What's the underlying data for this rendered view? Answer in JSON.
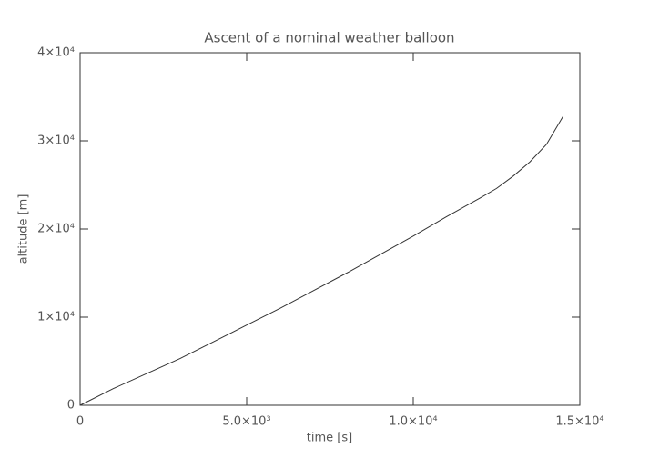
{
  "chart_data": {
    "type": "line",
    "title": "Ascent of a nominal weather balloon",
    "xlabel": "time [s]",
    "ylabel": "altitude [m]",
    "x": [
      0,
      1000,
      2000,
      3000,
      4000,
      5000,
      6000,
      7000,
      8000,
      9000,
      10000,
      11000,
      12000,
      12500,
      13000,
      13500,
      14000,
      14500
    ],
    "series": [
      {
        "color": "#333333",
        "values": [
          0,
          1900,
          3600,
          5300,
          7200,
          9100,
          11000,
          13000,
          15000,
          17100,
          19200,
          21400,
          23500,
          24600,
          26000,
          27600,
          29600,
          32800
        ]
      }
    ],
    "xlim": [
      0,
      15000
    ],
    "xticks": [
      0,
      {
        "value": 5000,
        "label": "5.0×10³"
      },
      {
        "value": 10000,
        "label": "1.0×10⁴"
      },
      {
        "value": 15000,
        "label": "1.5×10⁴"
      }
    ],
    "ylim": [
      0,
      40000
    ],
    "yticks": [
      0,
      {
        "value": 10000,
        "label": "1×10⁴"
      },
      {
        "value": 20000,
        "label": "2×10⁴"
      },
      {
        "value": 30000,
        "label": "3×10⁴"
      },
      {
        "value": 40000,
        "label": "4×10⁴"
      }
    ],
    "grid": false
  }
}
